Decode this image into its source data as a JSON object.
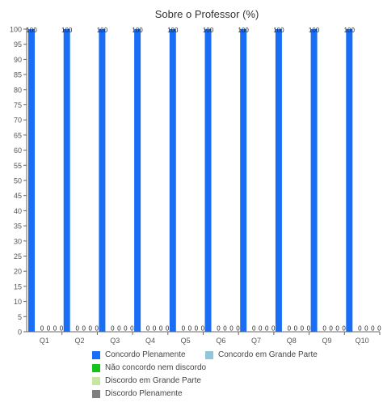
{
  "chart_data": {
    "type": "bar",
    "title": "Sobre o Professor (%)",
    "xlabel": "",
    "ylabel": "",
    "ylim": [
      0,
      100
    ],
    "yticks": [
      0,
      5,
      10,
      15,
      20,
      25,
      30,
      35,
      40,
      45,
      50,
      55,
      60,
      65,
      70,
      75,
      80,
      85,
      90,
      95,
      100
    ],
    "categories": [
      "Q1",
      "Q2",
      "Q3",
      "Q4",
      "Q5",
      "Q6",
      "Q7",
      "Q8",
      "Q9",
      "Q10"
    ],
    "series": [
      {
        "name": "Concordo Plenamente",
        "color": "#1a6ef5",
        "values": [
          100,
          100,
          100,
          100,
          100,
          100,
          100,
          100,
          100,
          100
        ]
      },
      {
        "name": "Concordo em Grande Parte",
        "color": "#8fc6dc",
        "values": [
          0,
          0,
          0,
          0,
          0,
          0,
          0,
          0,
          0,
          0
        ]
      },
      {
        "name": "Não concordo nem discordo",
        "color": "#13c21b",
        "values": [
          0,
          0,
          0,
          0,
          0,
          0,
          0,
          0,
          0,
          0
        ]
      },
      {
        "name": "Discordo em Grande Parte",
        "color": "#c8e6a0",
        "values": [
          0,
          0,
          0,
          0,
          0,
          0,
          0,
          0,
          0,
          0
        ]
      },
      {
        "name": "Discordo Plenamente",
        "color": "#7f7f7f",
        "values": [
          0,
          0,
          0,
          0,
          0,
          0,
          0,
          0,
          0,
          0
        ]
      }
    ],
    "grid": false,
    "legend_position": "bottom",
    "data_labels": true
  }
}
